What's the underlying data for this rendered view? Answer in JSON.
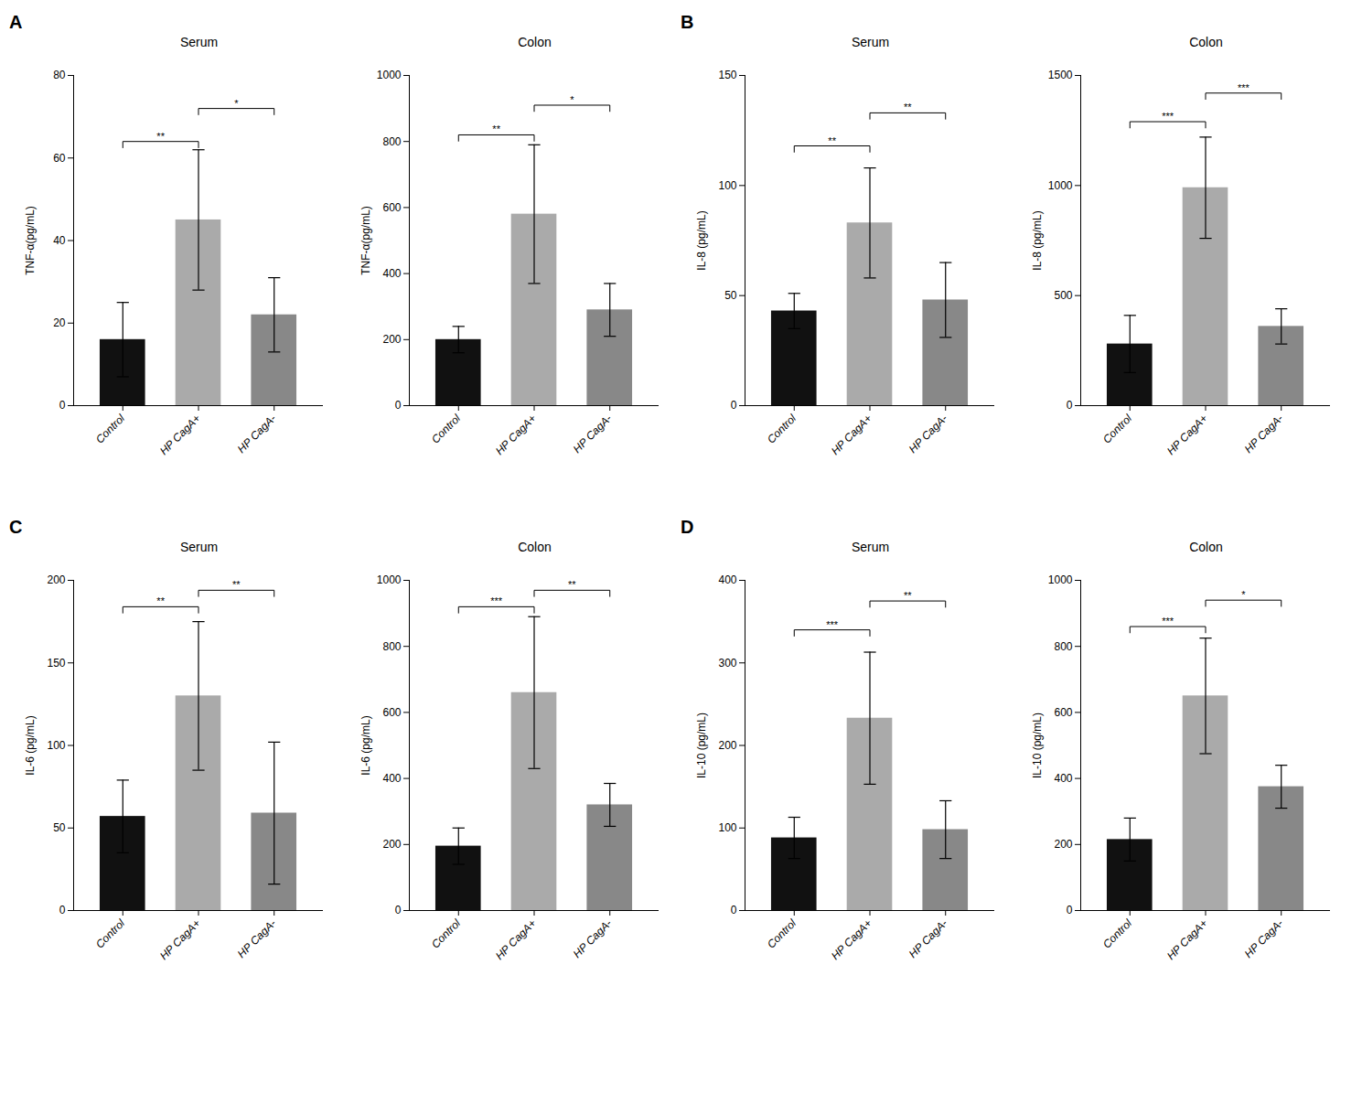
{
  "chart_data": [
    {
      "type": "bar",
      "panel": "A",
      "title": "Serum",
      "ylabel": "TNF-α(pg/mL)",
      "categories": [
        "Control",
        "HP CagA+",
        "HP CagA-"
      ],
      "values": [
        16,
        45,
        22
      ],
      "errors": [
        9,
        17,
        9
      ],
      "colors": [
        "#111111",
        "#aaaaaa",
        "#888888"
      ],
      "ylim": [
        0,
        80
      ],
      "yticks": [
        0,
        20,
        40,
        60,
        80
      ],
      "annotations": [
        {
          "x1": "Control",
          "x2": "HP CagA+",
          "y": 64,
          "label": "**"
        },
        {
          "x1": "HP CagA+",
          "x2": "HP CagA-",
          "y": 72,
          "label": "*"
        }
      ]
    },
    {
      "type": "bar",
      "title": "Colon",
      "ylabel": "TNF-α(pg/mL)",
      "categories": [
        "Control",
        "HP CagA+",
        "HP CagA-"
      ],
      "values": [
        200,
        580,
        290
      ],
      "errors": [
        40,
        210,
        80
      ],
      "colors": [
        "#111111",
        "#aaaaaa",
        "#888888"
      ],
      "ylim": [
        0,
        1000
      ],
      "yticks": [
        0,
        200,
        400,
        600,
        800,
        1000
      ],
      "annotations": [
        {
          "x1": "Control",
          "x2": "HP CagA+",
          "y": 820,
          "label": "**"
        },
        {
          "x1": "HP CagA+",
          "x2": "HP CagA-",
          "y": 910,
          "label": "*"
        }
      ]
    },
    {
      "type": "bar",
      "panel": "B",
      "title": "Serum",
      "ylabel": "IL-8 (pg/mL)",
      "categories": [
        "Control",
        "HP CagA+",
        "HP CagA-"
      ],
      "values": [
        43,
        83,
        48
      ],
      "errors": [
        8,
        25,
        17
      ],
      "colors": [
        "#111111",
        "#aaaaaa",
        "#888888"
      ],
      "ylim": [
        0,
        150
      ],
      "yticks": [
        0,
        50,
        100,
        150
      ],
      "annotations": [
        {
          "x1": "Control",
          "x2": "HP CagA+",
          "y": 118,
          "label": "**"
        },
        {
          "x1": "HP CagA+",
          "x2": "HP CagA-",
          "y": 133,
          "label": "**"
        }
      ]
    },
    {
      "type": "bar",
      "title": "Colon",
      "ylabel": "IL-8 (pg/mL)",
      "categories": [
        "Control",
        "HP CagA+",
        "HP CagA-"
      ],
      "values": [
        280,
        990,
        360
      ],
      "errors": [
        130,
        230,
        80
      ],
      "colors": [
        "#111111",
        "#aaaaaa",
        "#888888"
      ],
      "ylim": [
        0,
        1500
      ],
      "yticks": [
        0,
        500,
        1000,
        1500
      ],
      "annotations": [
        {
          "x1": "Control",
          "x2": "HP CagA+",
          "y": 1290,
          "label": "***"
        },
        {
          "x1": "HP CagA+",
          "x2": "HP CagA-",
          "y": 1420,
          "label": "***"
        }
      ]
    },
    {
      "type": "bar",
      "panel": "C",
      "title": "Serum",
      "ylabel": "IL-6 (pg/mL)",
      "categories": [
        "Control",
        "HP CagA+",
        "HP CagA-"
      ],
      "values": [
        57,
        130,
        59
      ],
      "errors": [
        22,
        45,
        43
      ],
      "colors": [
        "#111111",
        "#aaaaaa",
        "#888888"
      ],
      "ylim": [
        0,
        200
      ],
      "yticks": [
        0,
        50,
        100,
        150,
        200
      ],
      "annotations": [
        {
          "x1": "Control",
          "x2": "HP CagA+",
          "y": 184,
          "label": "**"
        },
        {
          "x1": "HP CagA+",
          "x2": "HP CagA-",
          "y": 194,
          "label": "**"
        }
      ]
    },
    {
      "type": "bar",
      "title": "Colon",
      "ylabel": "IL-6 (pg/mL)",
      "categories": [
        "Control",
        "HP CagA+",
        "HP CagA-"
      ],
      "values": [
        195,
        660,
        320
      ],
      "errors": [
        55,
        230,
        65
      ],
      "colors": [
        "#111111",
        "#aaaaaa",
        "#888888"
      ],
      "ylim": [
        0,
        1000
      ],
      "yticks": [
        0,
        200,
        400,
        600,
        800,
        1000
      ],
      "annotations": [
        {
          "x1": "Control",
          "x2": "HP CagA+",
          "y": 920,
          "label": "***"
        },
        {
          "x1": "HP CagA+",
          "x2": "HP CagA-",
          "y": 970,
          "label": "**"
        }
      ]
    },
    {
      "type": "bar",
      "panel": "D",
      "title": "Serum",
      "ylabel": "IL-10 (pg/mL)",
      "categories": [
        "Control",
        "HP CagA+",
        "HP CagA-"
      ],
      "values": [
        88,
        233,
        98
      ],
      "errors": [
        25,
        80,
        35
      ],
      "colors": [
        "#111111",
        "#aaaaaa",
        "#888888"
      ],
      "ylim": [
        0,
        400
      ],
      "yticks": [
        0,
        100,
        200,
        300,
        400
      ],
      "annotations": [
        {
          "x1": "Control",
          "x2": "HP CagA+",
          "y": 340,
          "label": "***"
        },
        {
          "x1": "HP CagA+",
          "x2": "HP CagA-",
          "y": 375,
          "label": "**"
        }
      ]
    },
    {
      "type": "bar",
      "title": "Colon",
      "ylabel": "IL-10 (pg/mL)",
      "categories": [
        "Control",
        "HP CagA+",
        "HP CagA-"
      ],
      "values": [
        215,
        650,
        375
      ],
      "errors": [
        65,
        175,
        65
      ],
      "colors": [
        "#111111",
        "#aaaaaa",
        "#888888"
      ],
      "ylim": [
        0,
        1000
      ],
      "yticks": [
        0,
        200,
        400,
        600,
        800,
        1000
      ],
      "annotations": [
        {
          "x1": "Control",
          "x2": "HP CagA+",
          "y": 860,
          "label": "***"
        },
        {
          "x1": "HP CagA+",
          "x2": "HP CagA-",
          "y": 940,
          "label": "*"
        }
      ]
    }
  ]
}
